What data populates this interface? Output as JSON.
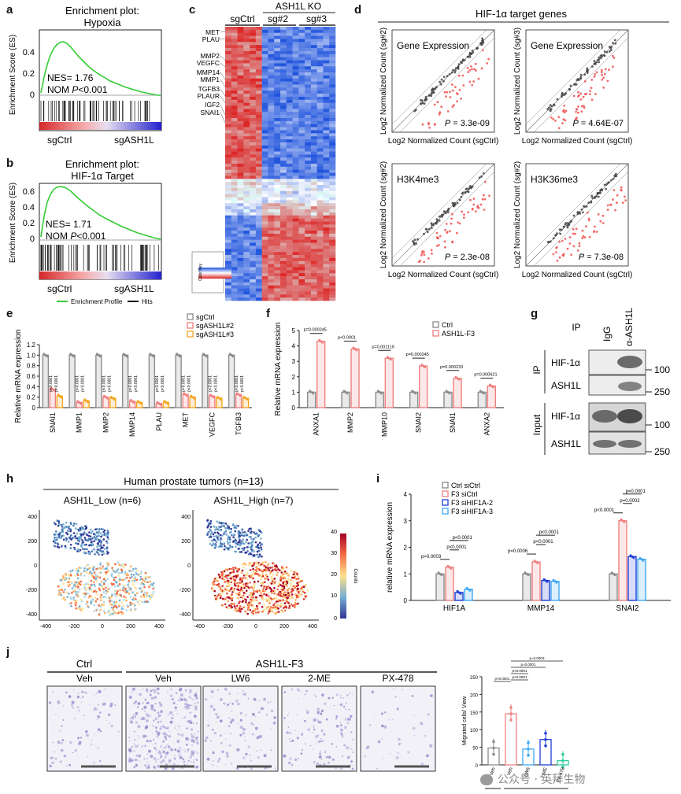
{
  "panels": {
    "a": {
      "label": "a",
      "title_line1": "Enrichment plot:",
      "title_line2": "Hypoxia",
      "ylabel": "Enrichment Score (ES)",
      "yticks": [
        "0.4",
        "0.2",
        "0"
      ],
      "nes": "NES= 1.76",
      "nom_prefix": "NOM ",
      "nom_p": "P",
      "nom_value": "<0.001",
      "left_label": "sgCtrl",
      "right_label": "sgASH1L"
    },
    "b": {
      "label": "b",
      "title_line1": "Enrichment plot:",
      "title_line2": "HIF-1α Target",
      "ylabel": "Enrichment Score (ES)",
      "yticks": [
        "0.6",
        "0.4",
        "0.2",
        "0"
      ],
      "nes": "NES= 1.71",
      "nom_prefix": "NOM ",
      "nom_p": "P",
      "nom_value": "<0.001",
      "left_label": "sgCtrl",
      "right_label": "sgASH1L",
      "legend_profile": "Enrichment Profile",
      "legend_hits": "Hits"
    },
    "c": {
      "label": "c",
      "group_ko": "ASH1L KO",
      "col_ctrl": "sgCtrl",
      "col_sg2": "sg#2",
      "col_sg3": "sg#3",
      "genes": [
        "MET",
        "PLAU",
        "MMP2",
        "VEGFC",
        "MMP14",
        "MMP1",
        "TGFB3",
        "PLAUR",
        "IGF2",
        "SNAI1"
      ],
      "color_key": "Color Key"
    },
    "d": {
      "label": "d",
      "header": "HIF-1α target genes",
      "plots": [
        {
          "title": "Gene Expression",
          "ylabel": "Log2 Normalized Count (sg#2)",
          "xlabel": "Log2 Normalized Count (sgCtrl)",
          "p_label": "P",
          "p_value": " = 3.3e-09"
        },
        {
          "title": "Gene Expression",
          "ylabel": "Log2 Normalized Count (sg#3)",
          "xlabel": "Log2 Normalized Count (sgCtrl)",
          "p_label": "P",
          "p_value": " = 4.64E-07"
        },
        {
          "title": "H3K4me3",
          "ylabel": "Log2 Normalized Count (sg#2)",
          "xlabel": "Log2 Normalized Count (sgCtrl)",
          "p_label": "P",
          "p_value": " = 2.3e-08"
        },
        {
          "title": "H3K36me3",
          "ylabel": "Log2 Normalized Count (sg#2)",
          "xlabel": "Log2 Normalized Count (sgCtrl)",
          "p_label": "P",
          "p_value": " = 7.3e-08"
        }
      ]
    },
    "e": {
      "label": "e",
      "ylabel": "Relative mRNA expression",
      "legend": [
        "sgCtrl",
        "sgASH1L#2",
        "sgASH1L#3"
      ],
      "colors": [
        "#8c8c8c",
        "#f08080",
        "#f5a623"
      ]
    },
    "f": {
      "label": "f",
      "ylabel": "Relative mRNA expression",
      "legend": [
        "Ctrl",
        "ASH1L-F3"
      ],
      "colors": [
        "#8c8c8c",
        "#f08080"
      ]
    },
    "g": {
      "label": "g",
      "ip_header": "IP",
      "lane_igg": "IgG",
      "lane_ash1l": "α-ASH1L",
      "side_ip": "IP",
      "side_input": "Input",
      "rows": [
        "HIF-1α",
        "ASH1L",
        "HIF-1α",
        "ASH1L"
      ],
      "markers": [
        "100",
        "250",
        "100",
        "250"
      ]
    },
    "h": {
      "label": "h",
      "header": "Human prostate tumors (n=13)",
      "left_title": "ASH1L_Low (n=6)",
      "right_title": "ASH1L_High (n=7)",
      "yticks": [
        "400",
        "200",
        "0",
        "-200",
        "-400"
      ],
      "xticks": [
        "-400",
        "-200",
        "0",
        "200",
        "400"
      ],
      "colorbar_label": "Counts",
      "colorbar_ticks": [
        "40",
        "30",
        "20",
        "10",
        "0"
      ]
    },
    "i": {
      "label": "i",
      "ylabel": "relative mRNA expression",
      "legend": [
        "Ctrl siCtrl",
        "F3 siCtrl",
        "F3 siHIF1A-2",
        "F3 siHIF1A-3"
      ],
      "colors": [
        "#8c8c8c",
        "#f08080",
        "#1f3fd6",
        "#3fa9f5"
      ]
    },
    "j": {
      "label": "j",
      "group_ctrl": "Ctrl",
      "group_f3": "ASH1L-F3",
      "images": [
        "Veh",
        "Veh",
        "LW6",
        "2-ME",
        "PX-478"
      ],
      "ylabel": "Migrated cells/ View",
      "bar_xlabels": [
        "Veh",
        "Veh",
        "LW6",
        "2-ME",
        "PX-478"
      ],
      "bar_group_ctrl": "Ctrl",
      "bar_group_f3": "ASH1L-F3",
      "bar_colors": [
        "#8c8c8c",
        "#f08080",
        "#3fa9f5",
        "#1f3fd6",
        "#2ecc9a"
      ]
    }
  },
  "chart_data": [
    {
      "id": "e",
      "type": "bar",
      "categories": [
        "SNAI1",
        "MMP1",
        "MMP2",
        "MMP14",
        "PLAU",
        "MET",
        "VEGFC",
        "TGFB3"
      ],
      "series": [
        {
          "name": "sgCtrl",
          "values": [
            1.0,
            1.0,
            1.0,
            1.0,
            1.0,
            1.0,
            1.0,
            1.0
          ]
        },
        {
          "name": "sgASH1L#2",
          "values": [
            0.35,
            0.1,
            0.2,
            0.12,
            0.08,
            0.25,
            0.22,
            0.25
          ]
        },
        {
          "name": "sgASH1L#3",
          "values": [
            0.22,
            0.13,
            0.18,
            0.1,
            0.1,
            0.2,
            0.18,
            0.18
          ]
        }
      ],
      "ylim": [
        0,
        1.2
      ],
      "yticks": [
        "0",
        "0.2",
        "0.4",
        "0.6",
        "0.8",
        "1.0",
        "1.2"
      ],
      "pvals2": [
        "p<0.0001",
        "p<0.0001",
        "p<0.0001",
        "p<0.0001",
        "p<0.0001",
        "p<0.0001",
        "p<0.0001",
        "p<0.0001"
      ],
      "pvals3": [
        "p<0.0001",
        "p<0.0001",
        "p<0.0001",
        "p<0.0001",
        "p<0.0001",
        "p<0.0001",
        "p<0.0001",
        "p<0.0001"
      ]
    },
    {
      "id": "f",
      "type": "bar",
      "categories": [
        "ANXA1",
        "MMP2",
        "MMP10",
        "SNAI2",
        "SNAI1",
        "ANXA2"
      ],
      "series": [
        {
          "name": "Ctrl",
          "values": [
            1.0,
            1.0,
            1.0,
            1.0,
            1.0,
            1.0
          ]
        },
        {
          "name": "ASH1L-F3",
          "values": [
            4.3,
            3.8,
            3.2,
            2.7,
            1.9,
            1.4
          ]
        }
      ],
      "ylim": [
        0,
        5
      ],
      "yticks": [
        "0",
        "1",
        "2",
        "3",
        "4",
        "5"
      ],
      "pvals": [
        "p=0.000245",
        "p<0.0001",
        "p=0.001119",
        "p=0.000245",
        "p=0.000233",
        "p=0.000621"
      ]
    },
    {
      "id": "i",
      "type": "bar",
      "categories": [
        "HIF1A",
        "MMP14",
        "SNAI2"
      ],
      "series": [
        {
          "name": "Ctrl siCtrl",
          "values": [
            1.0,
            1.0,
            1.0
          ]
        },
        {
          "name": "F3 siCtrl",
          "values": [
            1.25,
            1.45,
            3.0
          ]
        },
        {
          "name": "F3 siHIF1A-2",
          "values": [
            0.3,
            0.75,
            1.65
          ]
        },
        {
          "name": "F3 siHIF1A-3",
          "values": [
            0.42,
            0.72,
            1.55
          ]
        }
      ],
      "ylim": [
        0,
        4
      ],
      "yticks": [
        "0",
        "1",
        "2",
        "3",
        "4"
      ],
      "pvals": [
        [
          "p=0.0003",
          "p<0.0001",
          "p<0.0001"
        ],
        [
          "p=0.0006",
          "p<0.0001",
          "p<0.0001"
        ],
        [
          "p<0.0001",
          "p=0.0002",
          "p=0.0001"
        ]
      ]
    },
    {
      "id": "j",
      "type": "bar",
      "categories": [
        "Veh",
        "Veh",
        "LW6",
        "2-ME",
        "PX-478"
      ],
      "values": [
        48,
        145,
        45,
        72,
        12
      ],
      "ylim": [
        0,
        250
      ],
      "yticks": [
        "0",
        "50",
        "100",
        "150",
        "200",
        "250"
      ],
      "pvals": [
        "p<0.0001",
        "p<0.0001",
        "p<0.0001",
        "p=0.0001",
        "p=0.0003"
      ]
    }
  ]
}
